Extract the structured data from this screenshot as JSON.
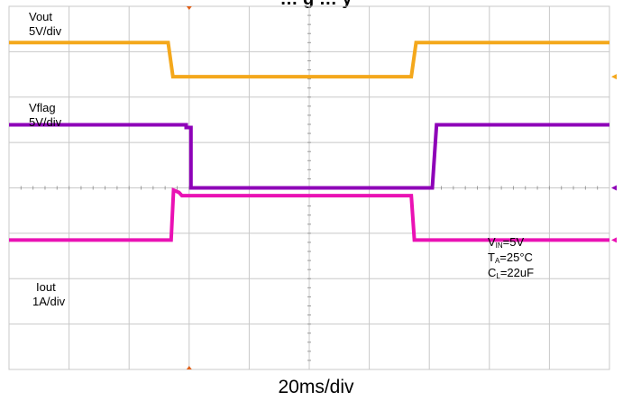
{
  "chart_data": {
    "type": "line",
    "title": "… g … y",
    "x_label": "20ms/div",
    "x_divisions": 10,
    "y_divisions": 8,
    "x_range": [
      0,
      10
    ],
    "y_range": [
      -4,
      4
    ],
    "grid": true,
    "series": [
      {
        "key": "vout",
        "name": "Vout",
        "scale": "5V/div",
        "color": "#f4a81c",
        "points": [
          [
            0.0,
            3.2
          ],
          [
            2.65,
            3.2
          ],
          [
            2.73,
            2.45
          ],
          [
            6.7,
            2.45
          ],
          [
            6.78,
            3.2
          ],
          [
            10.0,
            3.2
          ]
        ]
      },
      {
        "key": "vflag",
        "name": "Vflag",
        "scale": "5V/div",
        "color": "#8e00b8",
        "points": [
          [
            0.0,
            1.39
          ],
          [
            2.95,
            1.39
          ],
          [
            2.95,
            1.33
          ],
          [
            3.03,
            1.33
          ],
          [
            3.03,
            0.0
          ],
          [
            7.05,
            0.0
          ],
          [
            7.12,
            1.39
          ],
          [
            10.0,
            1.39
          ]
        ]
      },
      {
        "key": "iout",
        "name": "Iout",
        "scale": "1A/div",
        "color": "#ea12b4",
        "points": [
          [
            0.0,
            -1.15
          ],
          [
            2.7,
            -1.15
          ],
          [
            2.74,
            -0.05
          ],
          [
            2.83,
            -0.1
          ],
          [
            2.88,
            -0.17
          ],
          [
            6.7,
            -0.17
          ],
          [
            6.75,
            -1.15
          ],
          [
            10.0,
            -1.15
          ]
        ]
      }
    ],
    "annotations": {
      "vin": {
        "sym": "V",
        "sub": "IN",
        "rest": "=5V"
      },
      "ta": {
        "sym": "T",
        "sub": "A",
        "rest": "=25°C"
      },
      "cl": {
        "sym": "C",
        "sub": "L",
        "rest": "=22uF"
      }
    }
  },
  "labels": {
    "vout_name": "Vout",
    "vout_scale": "5V/div",
    "vflag_name": "Vflag",
    "vflag_scale": "5V/div",
    "iout_name": "Iout",
    "iout_scale": "1A/div"
  },
  "colors": {
    "grid": "#c8c8c8",
    "ticks": "#9a9a9a",
    "trigger_marker": "#e0601a",
    "ch4_marker": "#ea12b4",
    "ch3_marker": "#8e00b8",
    "ch2_marker": "#f4a81c"
  }
}
